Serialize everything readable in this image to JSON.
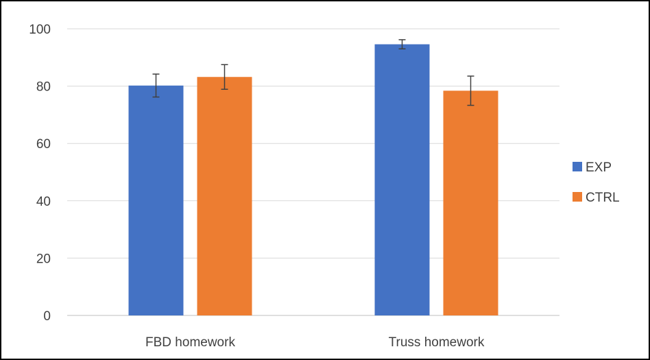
{
  "chart_data": {
    "type": "bar",
    "title": "",
    "xlabel": "",
    "ylabel": "",
    "categories": [
      "FBD homework",
      "Truss homework"
    ],
    "series": [
      {
        "name": "EXP",
        "color": "#4472C4",
        "values": [
          80.2,
          94.6
        ],
        "error": [
          4.0,
          1.6
        ]
      },
      {
        "name": "CTRL",
        "color": "#ED7D31",
        "values": [
          83.2,
          78.4
        ],
        "error": [
          4.3,
          5.1
        ]
      }
    ],
    "ylim": [
      0,
      100
    ],
    "yticks": [
      "0",
      "20",
      "40",
      "60",
      "80",
      "100"
    ],
    "grid": true,
    "legend_position": "right"
  }
}
